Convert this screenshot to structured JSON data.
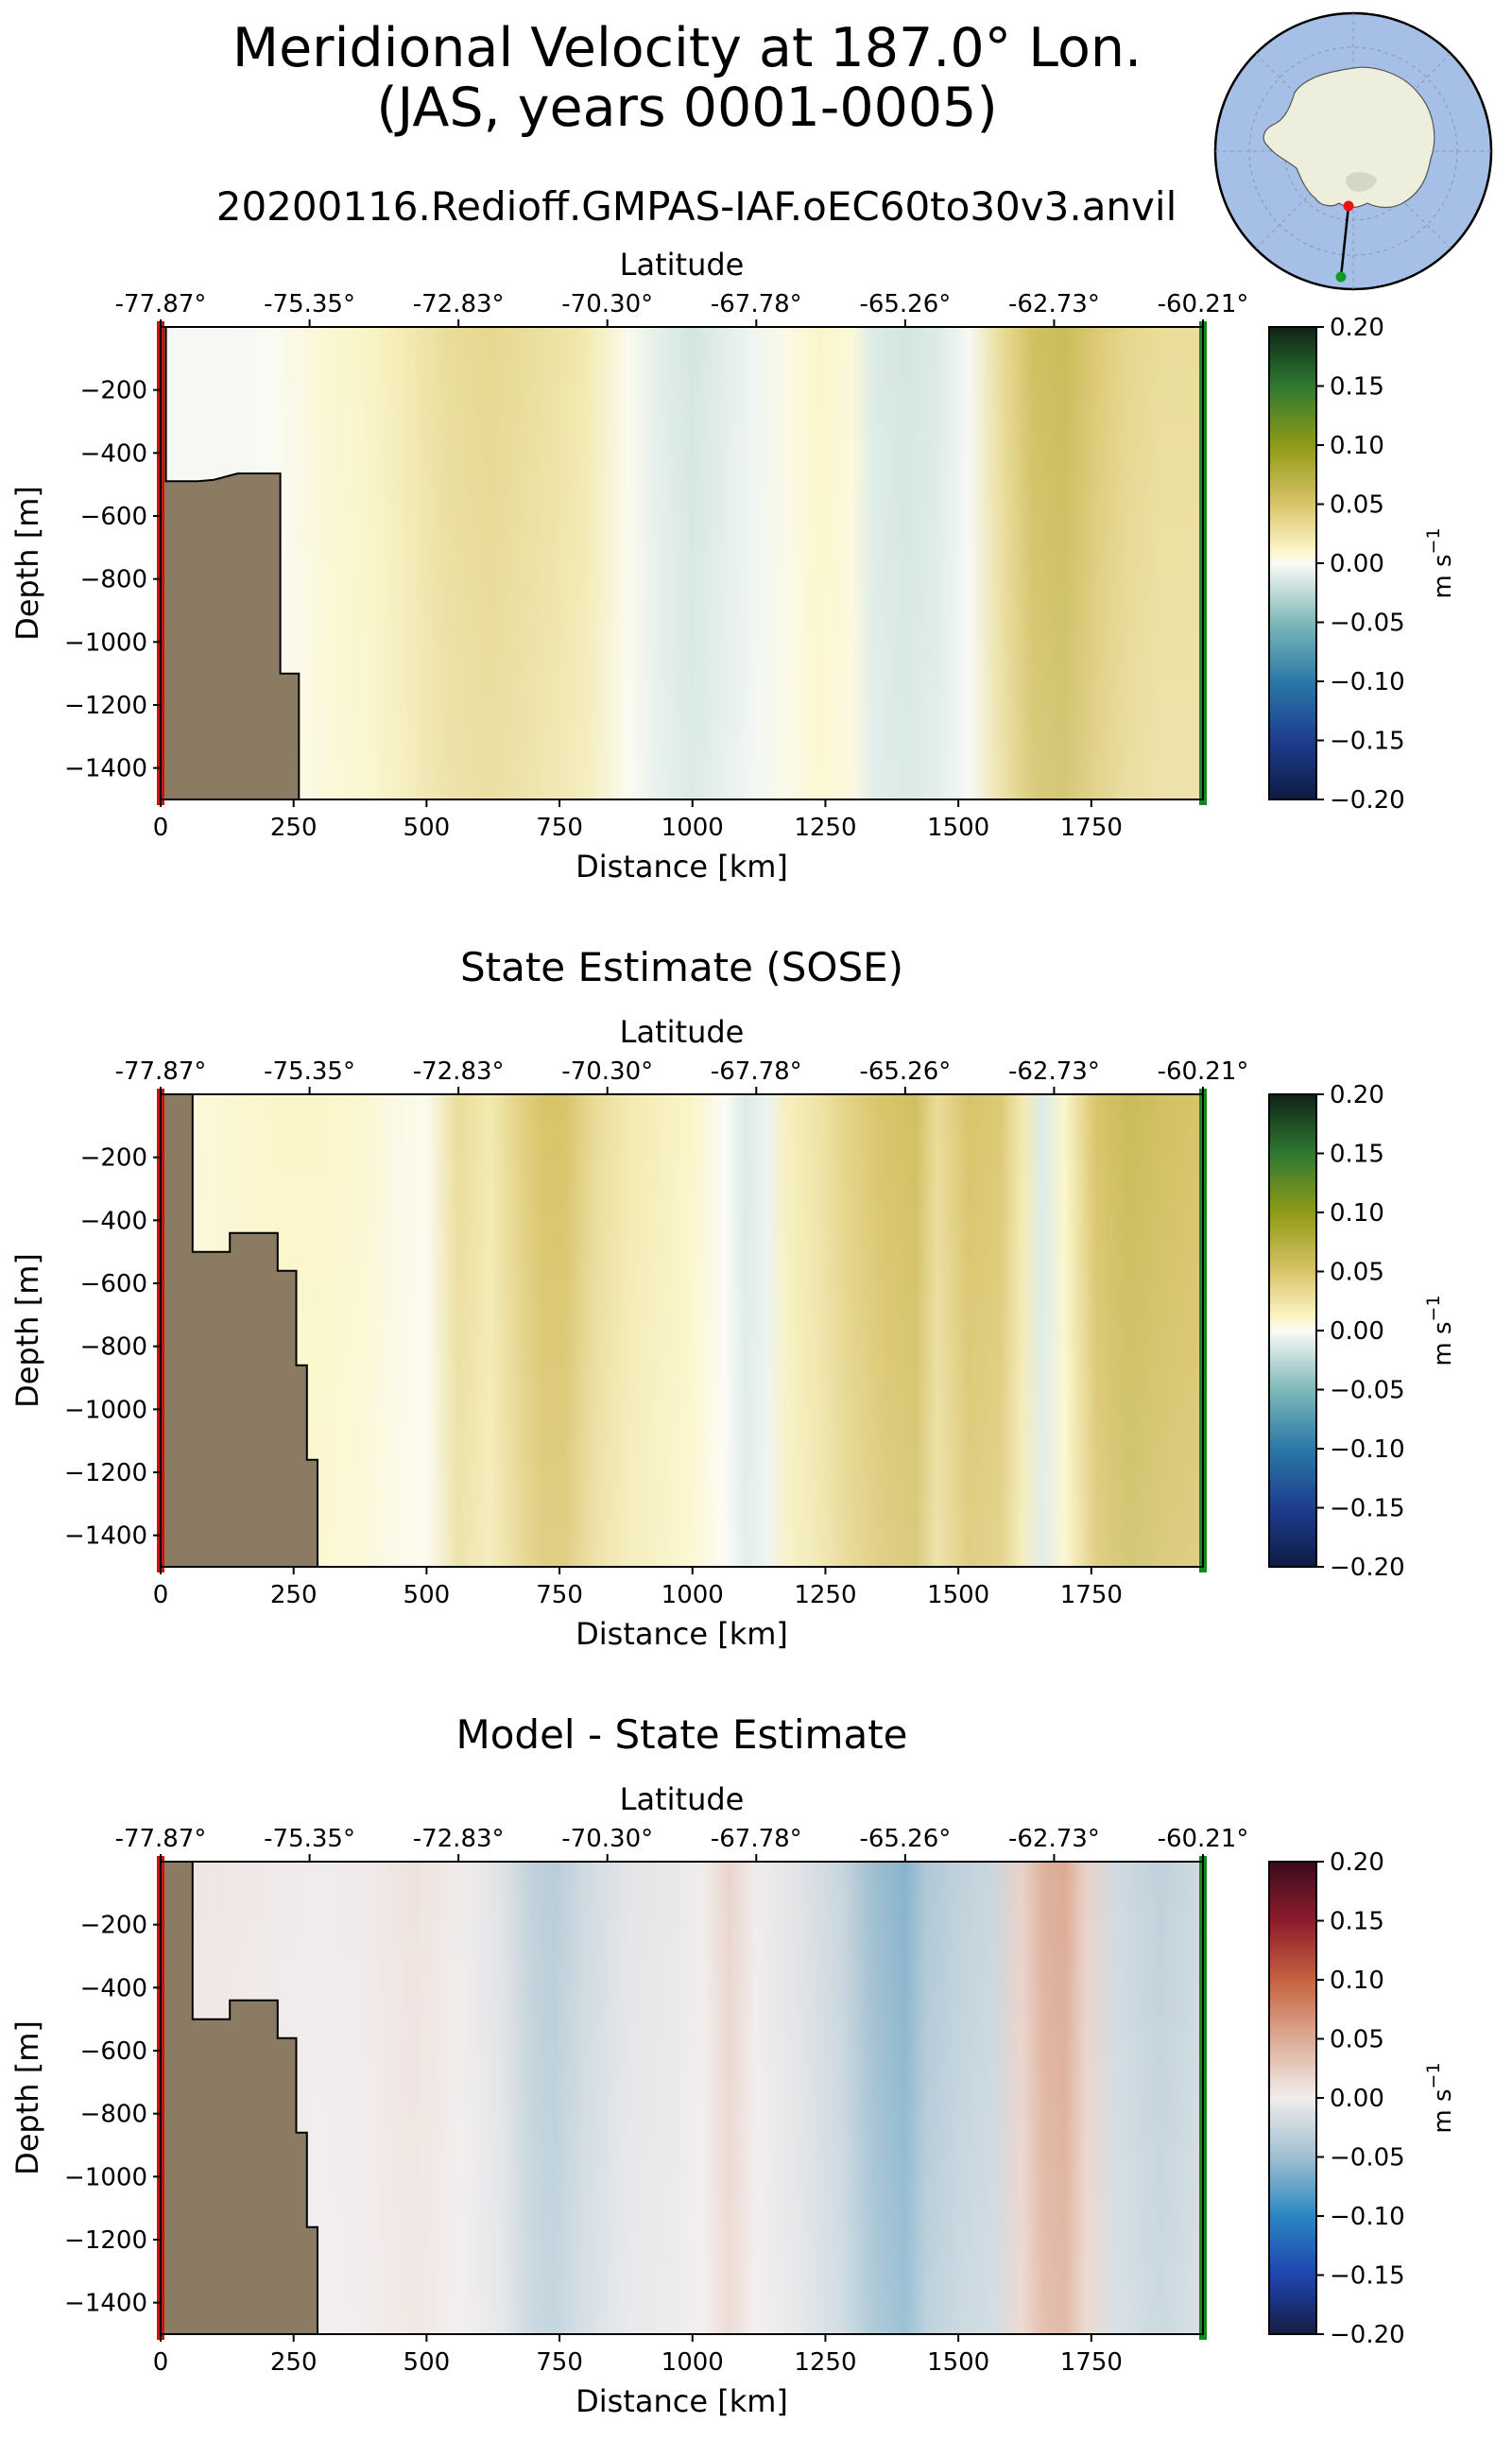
{
  "figure": {
    "title_line1": "Meridional Velocity at 187.0° Lon.",
    "title_line2": "(JAS, years 0001-0005)",
    "run_title": "20200116.Redioff.GMPAS-IAF.oEC60to30v3.anvil",
    "colors": {
      "land": "#8b7b62",
      "start_marker": "#cc1111",
      "end_marker": "#118822",
      "map_ocean": "#a6bfe6",
      "map_land": "#eeeedd"
    },
    "inset_map": {
      "name": "Antarctica polar stereographic inset with transect line",
      "markers": [
        "start",
        "end"
      ]
    }
  },
  "chart_data": [
    {
      "type": "heatmap",
      "title": "",
      "xlabel": "Distance [km]",
      "ylabel": "Depth [m]",
      "top_xlabel": "Latitude",
      "xlim": [
        0,
        1960
      ],
      "ylim": [
        -1500,
        0
      ],
      "x_ticks": [
        0,
        250,
        500,
        750,
        1000,
        1250,
        1500,
        1750
      ],
      "x_tick_labels": [
        "0",
        "250",
        "500",
        "750",
        "1000",
        "1250",
        "1500",
        "1750"
      ],
      "y_ticks": [
        -200,
        -400,
        -600,
        -800,
        -1000,
        -1200,
        -1400
      ],
      "y_tick_labels": [
        "−200",
        "−400",
        "−600",
        "−800",
        "−1000",
        "−1200",
        "−1400"
      ],
      "lat_ticks": [
        0,
        280,
        560,
        840,
        1120,
        1400,
        1680,
        1960
      ],
      "lat_tick_labels": [
        "-77.87°",
        "-75.35°",
        "-72.83°",
        "-70.30°",
        "-67.78°",
        "-65.26°",
        "-62.73°",
        "-60.21°"
      ],
      "colormap": "balance-green",
      "colorbar": {
        "label": "m s",
        "label_superscript": "−1",
        "range": [
          -0.2,
          0.2
        ],
        "ticks": [
          0.2,
          0.15,
          0.1,
          0.05,
          0.0,
          -0.05,
          -0.1,
          -0.15,
          -0.2
        ],
        "tick_labels": [
          "0.20",
          "0.15",
          "0.10",
          "0.05",
          "0.00",
          "−0.05",
          "−0.10",
          "−0.15",
          "−0.20"
        ]
      },
      "velocity_profile": {
        "distance_km": [
          0,
          60,
          120,
          200,
          260,
          320,
          400,
          480,
          540,
          620,
          680,
          740,
          800,
          880,
          940,
          1000,
          1060,
          1120,
          1180,
          1240,
          1300,
          1340,
          1400,
          1460,
          1520,
          1580,
          1640,
          1700,
          1760,
          1820,
          1880,
          1960
        ],
        "velocity_ms": [
          -0.003,
          -0.002,
          -0.002,
          -0.001,
          0.004,
          0.008,
          0.012,
          0.022,
          0.03,
          0.034,
          0.03,
          0.026,
          0.02,
          0.002,
          -0.01,
          -0.016,
          -0.01,
          -0.004,
          0.004,
          0.01,
          0.006,
          -0.012,
          -0.016,
          -0.012,
          -0.002,
          0.03,
          0.055,
          0.06,
          0.045,
          0.035,
          0.03,
          0.03
        ]
      },
      "bathymetry": {
        "distance_km": [
          0,
          10,
          10,
          70,
          70,
          100,
          100,
          145,
          145,
          225,
          225,
          260,
          260
        ],
        "depth_m": [
          0,
          0,
          -490,
          -490,
          -490,
          -485,
          -485,
          -465,
          -465,
          -465,
          -1100,
          -1100,
          -1500
        ]
      }
    },
    {
      "type": "heatmap",
      "title": "State Estimate (SOSE)",
      "xlabel": "Distance [km]",
      "ylabel": "Depth [m]",
      "top_xlabel": "Latitude",
      "xlim": [
        0,
        1960
      ],
      "ylim": [
        -1500,
        0
      ],
      "x_ticks": [
        0,
        250,
        500,
        750,
        1000,
        1250,
        1500,
        1750
      ],
      "x_tick_labels": [
        "0",
        "250",
        "500",
        "750",
        "1000",
        "1250",
        "1500",
        "1750"
      ],
      "y_ticks": [
        -200,
        -400,
        -600,
        -800,
        -1000,
        -1200,
        -1400
      ],
      "y_tick_labels": [
        "−200",
        "−400",
        "−600",
        "−800",
        "−1000",
        "−1200",
        "−1400"
      ],
      "lat_ticks": [
        0,
        280,
        560,
        840,
        1120,
        1400,
        1680,
        1960
      ],
      "lat_tick_labels": [
        "-77.87°",
        "-75.35°",
        "-72.83°",
        "-70.30°",
        "-67.78°",
        "-65.26°",
        "-62.73°",
        "-60.21°"
      ],
      "colormap": "balance-green",
      "colorbar": {
        "label": "m s",
        "label_superscript": "−1",
        "range": [
          -0.2,
          0.2
        ],
        "ticks": [
          0.2,
          0.15,
          0.1,
          0.05,
          0.0,
          -0.05,
          -0.1,
          -0.15,
          -0.2
        ],
        "tick_labels": [
          "0.20",
          "0.15",
          "0.10",
          "0.05",
          "0.00",
          "−0.05",
          "−0.10",
          "−0.15",
          "−0.20"
        ]
      },
      "velocity_profile": {
        "distance_km": [
          0,
          60,
          140,
          220,
          300,
          380,
          440,
          500,
          560,
          620,
          680,
          720,
          760,
          820,
          880,
          940,
          1000,
          1060,
          1100,
          1140,
          1180,
          1240,
          1300,
          1360,
          1420,
          1460,
          1520,
          1580,
          1620,
          1660,
          1700,
          1760,
          1820,
          1880,
          1960
        ],
        "velocity_ms": [
          0.006,
          0.006,
          0.008,
          0.01,
          0.01,
          0.008,
          0.004,
          0.002,
          0.03,
          0.02,
          0.04,
          0.05,
          0.05,
          0.03,
          0.02,
          0.015,
          0.01,
          0.0,
          -0.012,
          -0.006,
          0.015,
          0.025,
          0.04,
          0.05,
          0.055,
          0.03,
          0.05,
          0.045,
          0.02,
          -0.012,
          0.01,
          0.05,
          0.06,
          0.055,
          0.05
        ]
      },
      "bathymetry": {
        "distance_km": [
          0,
          60,
          60,
          130,
          130,
          220,
          220,
          255,
          255,
          275,
          275,
          295,
          295
        ],
        "depth_m": [
          0,
          0,
          -500,
          -500,
          -440,
          -440,
          -560,
          -560,
          -860,
          -860,
          -1160,
          -1160,
          -1500
        ]
      }
    },
    {
      "type": "heatmap",
      "title": "Model - State Estimate",
      "xlabel": "Distance [km]",
      "ylabel": "Depth [m]",
      "top_xlabel": "Latitude",
      "xlim": [
        0,
        1960
      ],
      "ylim": [
        -1500,
        0
      ],
      "x_ticks": [
        0,
        250,
        500,
        750,
        1000,
        1250,
        1500,
        1750
      ],
      "x_tick_labels": [
        "0",
        "250",
        "500",
        "750",
        "1000",
        "1250",
        "1500",
        "1750"
      ],
      "y_ticks": [
        -200,
        -400,
        -600,
        -800,
        -1000,
        -1200,
        -1400
      ],
      "y_tick_labels": [
        "−200",
        "−400",
        "−600",
        "−800",
        "−1000",
        "−1200",
        "−1400"
      ],
      "lat_ticks": [
        0,
        280,
        560,
        840,
        1120,
        1400,
        1680,
        1960
      ],
      "lat_tick_labels": [
        "-77.87°",
        "-75.35°",
        "-72.83°",
        "-70.30°",
        "-67.78°",
        "-65.26°",
        "-62.73°",
        "-60.21°"
      ],
      "colormap": "balance",
      "colorbar": {
        "label": "m s",
        "label_superscript": "−1",
        "range": [
          -0.2,
          0.2
        ],
        "ticks": [
          0.2,
          0.15,
          0.1,
          0.05,
          0.0,
          -0.05,
          -0.1,
          -0.15,
          -0.2
        ],
        "tick_labels": [
          "0.20",
          "0.15",
          "0.10",
          "0.05",
          "0.00",
          "−0.05",
          "−0.10",
          "−0.15",
          "−0.20"
        ]
      },
      "velocity_profile": {
        "distance_km": [
          0,
          100,
          200,
          300,
          400,
          480,
          560,
          640,
          700,
          740,
          800,
          880,
          960,
          1020,
          1070,
          1120,
          1200,
          1280,
          1340,
          1400,
          1440,
          1500,
          1560,
          1620,
          1660,
          1700,
          1740,
          1800,
          1880,
          1960
        ],
        "velocity_ms": [
          0.006,
          0.004,
          0.002,
          0.0,
          0.002,
          0.008,
          0.0,
          -0.01,
          -0.03,
          -0.035,
          -0.02,
          -0.008,
          -0.005,
          0.0,
          0.018,
          0.0,
          -0.01,
          -0.025,
          -0.05,
          -0.06,
          -0.04,
          -0.03,
          -0.025,
          0.02,
          0.045,
          0.05,
          0.02,
          -0.02,
          -0.03,
          -0.02
        ]
      },
      "bathymetry": {
        "distance_km": [
          0,
          60,
          60,
          130,
          130,
          220,
          220,
          255,
          255,
          275,
          275,
          295,
          295
        ],
        "depth_m": [
          0,
          0,
          -500,
          -500,
          -440,
          -440,
          -560,
          -560,
          -860,
          -860,
          -1160,
          -1160,
          -1500
        ]
      }
    }
  ]
}
